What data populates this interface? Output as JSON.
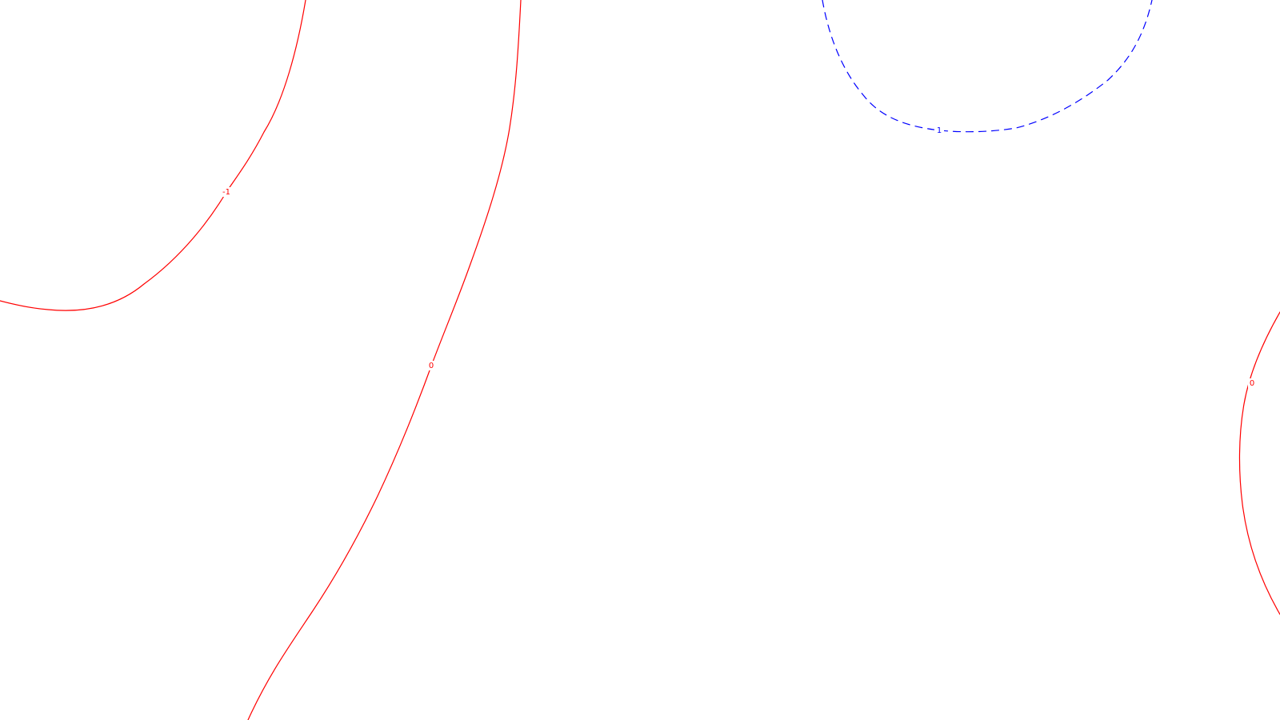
{
  "map": {
    "contours": [
      {
        "id": "neg1-upper-left",
        "label": "-1",
        "color": "#ff0000",
        "style": "solid"
      },
      {
        "id": "zero-center",
        "label": "0",
        "color": "#ff0000",
        "style": "solid"
      },
      {
        "id": "pos1-top-right",
        "label": "1",
        "color": "#0000ff",
        "style": "dashed"
      },
      {
        "id": "zero-right-edge",
        "label": "0",
        "color": "#ff0000",
        "style": "solid"
      }
    ]
  }
}
